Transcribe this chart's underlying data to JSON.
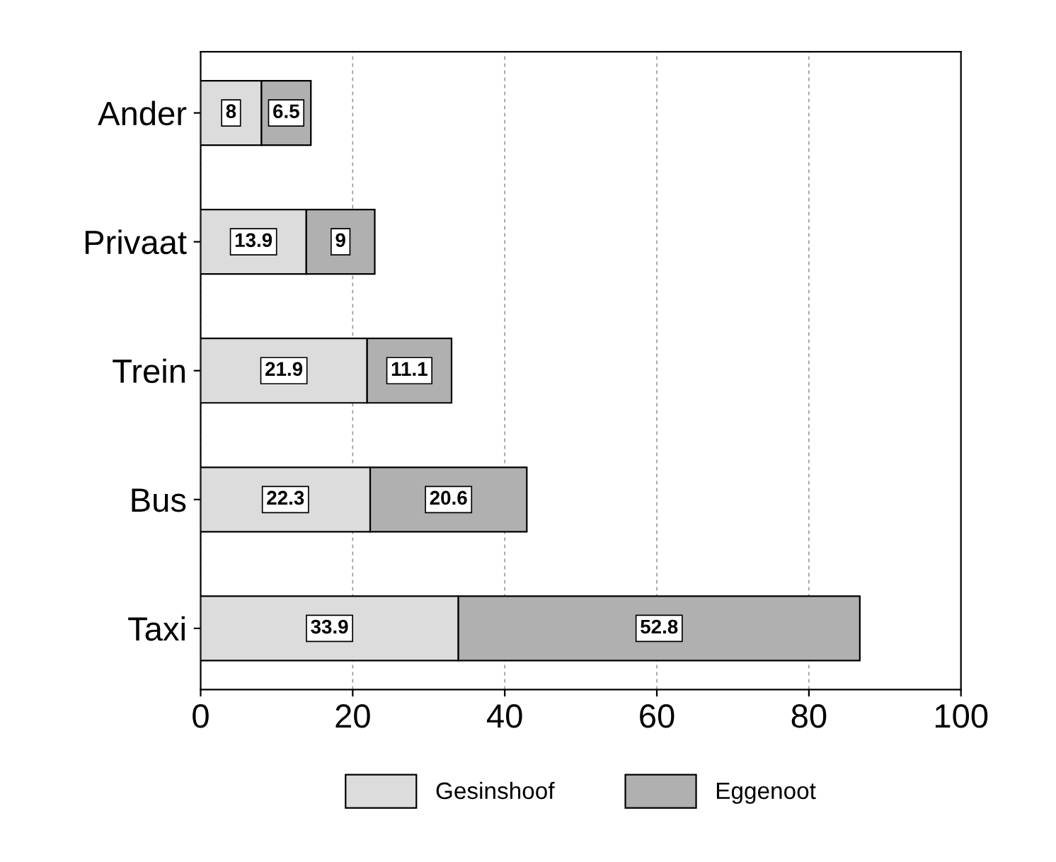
{
  "chart_data": {
    "type": "bar",
    "orientation": "horizontal",
    "stacked": true,
    "categories": [
      "Ander",
      "Privaat",
      "Trein",
      "Bus",
      "Taxi"
    ],
    "series": [
      {
        "name": "Gesinshoof",
        "color": "#dcdcdc",
        "values": [
          8,
          13.9,
          21.9,
          22.3,
          33.9
        ]
      },
      {
        "name": "Eggenoot",
        "color": "#b0b0b0",
        "values": [
          6.5,
          9,
          11.1,
          20.6,
          52.8
        ]
      }
    ],
    "xlim": [
      0,
      100
    ],
    "xticks": [
      0,
      20,
      40,
      60,
      80,
      100
    ],
    "grid": "x",
    "legend": "bottom",
    "data_labels": true
  }
}
